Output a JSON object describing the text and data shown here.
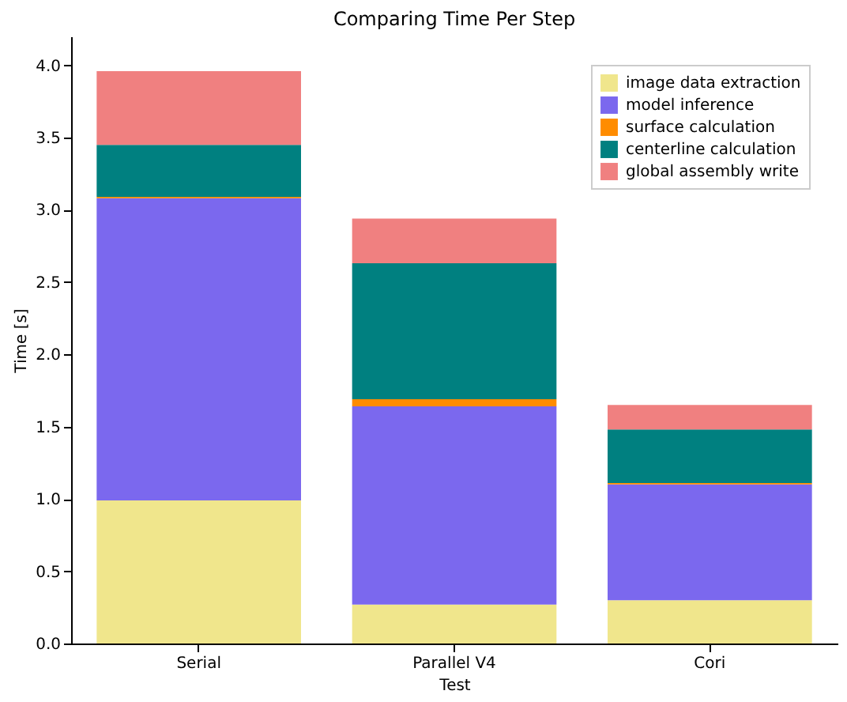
{
  "chart_data": {
    "type": "bar",
    "title": "Comparing Time Per Step",
    "xlabel": "Test",
    "ylabel": "Time [s]",
    "categories": [
      "Serial",
      "Parallel V4",
      "Cori"
    ],
    "stacked": true,
    "series": [
      {
        "name": "image data extraction",
        "color": "#f0e68c",
        "values": [
          0.99,
          0.27,
          0.3
        ]
      },
      {
        "name": "model inference",
        "color": "#7b68ee",
        "values": [
          2.09,
          1.37,
          0.8
        ]
      },
      {
        "name": "surface calculation",
        "color": "#ff8c00",
        "values": [
          0.01,
          0.05,
          0.01
        ]
      },
      {
        "name": "centerline calculation",
        "color": "#008080",
        "values": [
          0.36,
          0.94,
          0.37
        ]
      },
      {
        "name": "global assembly write",
        "color": "#f08080",
        "values": [
          0.51,
          0.31,
          0.17
        ]
      }
    ],
    "ylim": [
      0,
      4.2
    ],
    "yticks": [
      {
        "value": 0,
        "label": "0.0"
      },
      {
        "value": 0.5,
        "label": "0.5"
      },
      {
        "value": 1,
        "label": "1.0"
      },
      {
        "value": 1.5,
        "label": "1.5"
      },
      {
        "value": 2,
        "label": "2.0"
      },
      {
        "value": 2.5,
        "label": "2.5"
      },
      {
        "value": 3,
        "label": "3.0"
      },
      {
        "value": 3.5,
        "label": "3.5"
      },
      {
        "value": 4,
        "label": "4.0"
      }
    ],
    "grid": false,
    "legend": "top right"
  }
}
